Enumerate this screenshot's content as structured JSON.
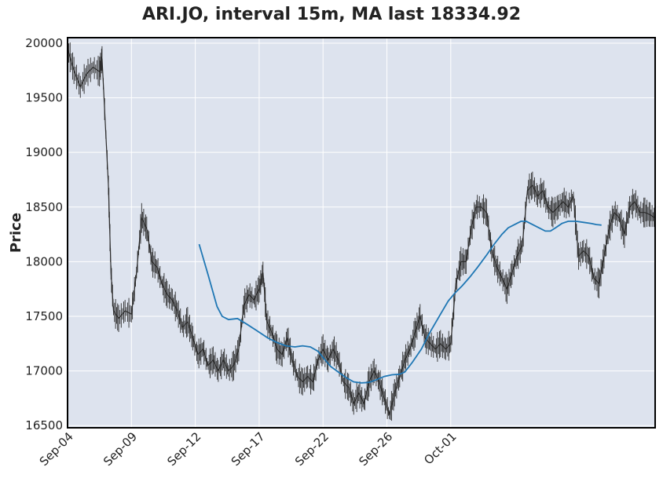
{
  "chart_data": {
    "type": "candlestick",
    "title": "ARI.JO, interval 15m, MA last 18334.92",
    "xlabel": "",
    "ylabel": "Price",
    "ylim": [
      16480,
      20050
    ],
    "yticks": [
      16500,
      17000,
      17500,
      18000,
      18500,
      19000,
      19500,
      20000
    ],
    "xticks": [
      "Sep-04",
      "Sep-09",
      "Sep-12",
      "Sep-17",
      "Sep-22",
      "Sep-26",
      "Oct-01"
    ],
    "grid": true,
    "ma_last": 18334.92,
    "price_series": [
      {
        "x": 0.0,
        "y": 19950
      },
      {
        "x": 0.5,
        "y": 19750
      },
      {
        "x": 1.0,
        "y": 19600
      },
      {
        "x": 1.5,
        "y": 19720
      },
      {
        "x": 2.0,
        "y": 19780
      },
      {
        "x": 2.5,
        "y": 19740
      },
      {
        "x": 2.7,
        "y": 19860
      },
      {
        "x": 3.2,
        "y": 18700
      },
      {
        "x": 3.4,
        "y": 17900
      },
      {
        "x": 3.6,
        "y": 17550
      },
      {
        "x": 4.0,
        "y": 17480
      },
      {
        "x": 4.5,
        "y": 17550
      },
      {
        "x": 5.0,
        "y": 17520
      },
      {
        "x": 5.4,
        "y": 17900
      },
      {
        "x": 5.8,
        "y": 18400
      },
      {
        "x": 6.2,
        "y": 18300
      },
      {
        "x": 6.6,
        "y": 18000
      },
      {
        "x": 7.0,
        "y": 17950
      },
      {
        "x": 7.4,
        "y": 17800
      },
      {
        "x": 7.8,
        "y": 17700
      },
      {
        "x": 8.2,
        "y": 17650
      },
      {
        "x": 8.6,
        "y": 17550
      },
      {
        "x": 9.0,
        "y": 17400
      },
      {
        "x": 9.4,
        "y": 17450
      },
      {
        "x": 9.8,
        "y": 17300
      },
      {
        "x": 10.2,
        "y": 17150
      },
      {
        "x": 10.6,
        "y": 17200
      },
      {
        "x": 11.0,
        "y": 17050
      },
      {
        "x": 11.4,
        "y": 17100
      },
      {
        "x": 11.8,
        "y": 17000
      },
      {
        "x": 12.2,
        "y": 17100
      },
      {
        "x": 12.6,
        "y": 17000
      },
      {
        "x": 13.0,
        "y": 17050
      },
      {
        "x": 13.4,
        "y": 17200
      },
      {
        "x": 13.8,
        "y": 17600
      },
      {
        "x": 14.2,
        "y": 17700
      },
      {
        "x": 14.6,
        "y": 17650
      },
      {
        "x": 15.0,
        "y": 17750
      },
      {
        "x": 15.3,
        "y": 17900
      },
      {
        "x": 15.6,
        "y": 17450
      },
      {
        "x": 16.0,
        "y": 17350
      },
      {
        "x": 16.4,
        "y": 17200
      },
      {
        "x": 16.8,
        "y": 17150
      },
      {
        "x": 17.2,
        "y": 17300
      },
      {
        "x": 17.6,
        "y": 17100
      },
      {
        "x": 18.0,
        "y": 16950
      },
      {
        "x": 18.4,
        "y": 16900
      },
      {
        "x": 18.8,
        "y": 16950
      },
      {
        "x": 19.2,
        "y": 16900
      },
      {
        "x": 19.6,
        "y": 17100
      },
      {
        "x": 20.0,
        "y": 17200
      },
      {
        "x": 20.4,
        "y": 17100
      },
      {
        "x": 20.8,
        "y": 17200
      },
      {
        "x": 21.2,
        "y": 17100
      },
      {
        "x": 21.6,
        "y": 16900
      },
      {
        "x": 22.0,
        "y": 16850
      },
      {
        "x": 22.4,
        "y": 16700
      },
      {
        "x": 22.8,
        "y": 16800
      },
      {
        "x": 23.2,
        "y": 16700
      },
      {
        "x": 23.6,
        "y": 16900
      },
      {
        "x": 24.0,
        "y": 17000
      },
      {
        "x": 24.4,
        "y": 16900
      },
      {
        "x": 24.8,
        "y": 16750
      },
      {
        "x": 25.2,
        "y": 16600
      },
      {
        "x": 25.6,
        "y": 16800
      },
      {
        "x": 26.0,
        "y": 16950
      },
      {
        "x": 26.4,
        "y": 17100
      },
      {
        "x": 26.8,
        "y": 17200
      },
      {
        "x": 27.2,
        "y": 17350
      },
      {
        "x": 27.6,
        "y": 17500
      },
      {
        "x": 28.0,
        "y": 17300
      },
      {
        "x": 28.4,
        "y": 17250
      },
      {
        "x": 28.8,
        "y": 17200
      },
      {
        "x": 29.2,
        "y": 17250
      },
      {
        "x": 29.6,
        "y": 17200
      },
      {
        "x": 30.0,
        "y": 17250
      },
      {
        "x": 30.4,
        "y": 17800
      },
      {
        "x": 30.8,
        "y": 18000
      },
      {
        "x": 31.2,
        "y": 18000
      },
      {
        "x": 31.6,
        "y": 18300
      },
      {
        "x": 32.0,
        "y": 18500
      },
      {
        "x": 32.4,
        "y": 18500
      },
      {
        "x": 32.8,
        "y": 18450
      },
      {
        "x": 33.2,
        "y": 18100
      },
      {
        "x": 33.6,
        "y": 17950
      },
      {
        "x": 34.0,
        "y": 17850
      },
      {
        "x": 34.4,
        "y": 17750
      },
      {
        "x": 34.8,
        "y": 17900
      },
      {
        "x": 35.2,
        "y": 18050
      },
      {
        "x": 35.6,
        "y": 18150
      },
      {
        "x": 36.0,
        "y": 18650
      },
      {
        "x": 36.4,
        "y": 18700
      },
      {
        "x": 36.8,
        "y": 18600
      },
      {
        "x": 37.2,
        "y": 18650
      },
      {
        "x": 37.6,
        "y": 18500
      },
      {
        "x": 38.0,
        "y": 18450
      },
      {
        "x": 38.4,
        "y": 18500
      },
      {
        "x": 38.8,
        "y": 18550
      },
      {
        "x": 39.2,
        "y": 18500
      },
      {
        "x": 39.6,
        "y": 18600
      },
      {
        "x": 40.0,
        "y": 18050
      },
      {
        "x": 40.4,
        "y": 18100
      },
      {
        "x": 40.8,
        "y": 18050
      },
      {
        "x": 41.2,
        "y": 17850
      },
      {
        "x": 41.6,
        "y": 17800
      },
      {
        "x": 42.0,
        "y": 18050
      },
      {
        "x": 42.4,
        "y": 18300
      },
      {
        "x": 42.8,
        "y": 18450
      },
      {
        "x": 43.2,
        "y": 18400
      },
      {
        "x": 43.6,
        "y": 18250
      },
      {
        "x": 44.0,
        "y": 18500
      },
      {
        "x": 44.4,
        "y": 18550
      },
      {
        "x": 44.8,
        "y": 18450
      },
      {
        "x": 45.2,
        "y": 18450
      },
      {
        "x": 45.6,
        "y": 18430
      },
      {
        "x": 46.0,
        "y": 18400
      }
    ],
    "ma_series": [
      {
        "x": 10.3,
        "y": 18160
      },
      {
        "x": 11.0,
        "y": 17880
      },
      {
        "x": 11.7,
        "y": 17590
      },
      {
        "x": 12.1,
        "y": 17500
      },
      {
        "x": 12.6,
        "y": 17470
      },
      {
        "x": 13.3,
        "y": 17480
      },
      {
        "x": 14.0,
        "y": 17430
      },
      {
        "x": 14.8,
        "y": 17370
      },
      {
        "x": 15.7,
        "y": 17300
      },
      {
        "x": 16.4,
        "y": 17260
      },
      {
        "x": 17.1,
        "y": 17230
      },
      {
        "x": 17.8,
        "y": 17220
      },
      {
        "x": 18.4,
        "y": 17230
      },
      {
        "x": 19.0,
        "y": 17220
      },
      {
        "x": 19.6,
        "y": 17180
      },
      {
        "x": 20.1,
        "y": 17110
      },
      {
        "x": 20.6,
        "y": 17040
      },
      {
        "x": 21.2,
        "y": 16990
      },
      {
        "x": 21.8,
        "y": 16940
      },
      {
        "x": 22.4,
        "y": 16900
      },
      {
        "x": 23.0,
        "y": 16890
      },
      {
        "x": 23.6,
        "y": 16895
      },
      {
        "x": 24.2,
        "y": 16920
      },
      {
        "x": 24.8,
        "y": 16950
      },
      {
        "x": 25.4,
        "y": 16965
      },
      {
        "x": 26.0,
        "y": 16970
      },
      {
        "x": 26.4,
        "y": 16990
      },
      {
        "x": 27.0,
        "y": 17080
      },
      {
        "x": 27.7,
        "y": 17200
      },
      {
        "x": 28.4,
        "y": 17360
      },
      {
        "x": 29.2,
        "y": 17520
      },
      {
        "x": 29.8,
        "y": 17640
      },
      {
        "x": 30.3,
        "y": 17710
      },
      {
        "x": 30.9,
        "y": 17780
      },
      {
        "x": 31.5,
        "y": 17860
      },
      {
        "x": 32.1,
        "y": 17950
      },
      {
        "x": 32.8,
        "y": 18060
      },
      {
        "x": 33.4,
        "y": 18160
      },
      {
        "x": 34.0,
        "y": 18250
      },
      {
        "x": 34.5,
        "y": 18310
      },
      {
        "x": 35.0,
        "y": 18340
      },
      {
        "x": 35.5,
        "y": 18370
      },
      {
        "x": 35.9,
        "y": 18370
      },
      {
        "x": 36.4,
        "y": 18340
      },
      {
        "x": 36.9,
        "y": 18310
      },
      {
        "x": 37.4,
        "y": 18280
      },
      {
        "x": 37.8,
        "y": 18280
      },
      {
        "x": 38.2,
        "y": 18310
      },
      {
        "x": 38.7,
        "y": 18350
      },
      {
        "x": 39.2,
        "y": 18370
      },
      {
        "x": 39.8,
        "y": 18370
      },
      {
        "x": 40.4,
        "y": 18360
      },
      {
        "x": 41.0,
        "y": 18350
      },
      {
        "x": 41.4,
        "y": 18340
      },
      {
        "x": 41.8,
        "y": 18335
      }
    ]
  },
  "colors": {
    "plot_background": "#dde3ee",
    "grid": "#ffffff",
    "price_line": "#2b2b2b",
    "ma_line": "#1f77b4",
    "axis": "#000000",
    "text": "#222222"
  }
}
